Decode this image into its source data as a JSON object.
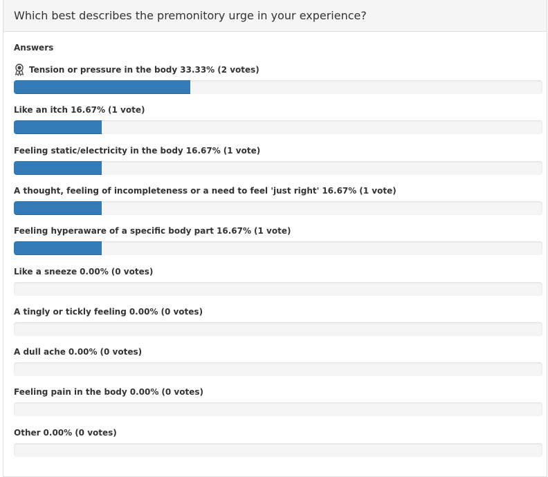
{
  "poll": {
    "question": "Which best describes the premonitory urge in your experience?",
    "answers_title": "Answers",
    "accent_color": "#337ab7",
    "options": [
      {
        "label": "Tension or pressure in the body",
        "percent_text": "33.33%",
        "votes_text": "(2 votes)",
        "percent": 33.33,
        "winner": true
      },
      {
        "label": "Like an itch",
        "percent_text": "16.67%",
        "votes_text": "(1 vote)",
        "percent": 16.67,
        "winner": false
      },
      {
        "label": "Feeling static/electricity in the body",
        "percent_text": "16.67%",
        "votes_text": "(1 vote)",
        "percent": 16.67,
        "winner": false
      },
      {
        "label": "A thought, feeling of incompleteness or a need to feel 'just right'",
        "percent_text": "16.67%",
        "votes_text": "(1 vote)",
        "percent": 16.67,
        "winner": false
      },
      {
        "label": "Feeling hyperaware of a specific body part",
        "percent_text": "16.67%",
        "votes_text": "(1 vote)",
        "percent": 16.67,
        "winner": false
      },
      {
        "label": "Like a sneeze",
        "percent_text": "0.00%",
        "votes_text": "(0 votes)",
        "percent": 0,
        "winner": false
      },
      {
        "label": "A tingly or tickly feeling",
        "percent_text": "0.00%",
        "votes_text": "(0 votes)",
        "percent": 0,
        "winner": false
      },
      {
        "label": "A dull ache",
        "percent_text": "0.00%",
        "votes_text": "(0 votes)",
        "percent": 0,
        "winner": false
      },
      {
        "label": "Feeling pain in the body",
        "percent_text": "0.00%",
        "votes_text": "(0 votes)",
        "percent": 0,
        "winner": false
      },
      {
        "label": "Other",
        "percent_text": "0.00%",
        "votes_text": "(0 votes)",
        "percent": 0,
        "winner": false
      }
    ]
  },
  "icons": {
    "winner": "award-ribbon-icon"
  }
}
